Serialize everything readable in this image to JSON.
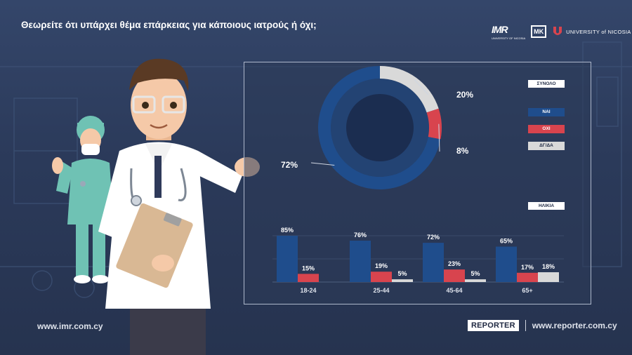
{
  "title": "Θεωρείτε ότι υπάρχει θέμα επάρκειας για κάποιους ιατρούς ή όχι;",
  "logos": {
    "imr": "IMR",
    "imr_sub": "UNIVERSITY OF NICOSIA",
    "box": "ΜΚ",
    "university": "UNIVERSITY of NICOSIA"
  },
  "footer": {
    "left_site": "www.imr.com.cy",
    "reporter": "REPORTER",
    "right_site": "www.reporter.com.cy"
  },
  "colors": {
    "yes": "#1f4d8c",
    "no": "#d8444e",
    "dk": "#d9d9d9",
    "ring_track": "#234373",
    "center": "#1b2d50"
  },
  "chart_data": [
    {
      "type": "pie",
      "label_tag": "ΣΥΝΟΛΟ",
      "categories": [
        "ΝΑΙ",
        "ΟΧΙ",
        "ΔΓ/ΔΑ"
      ],
      "values": [
        72,
        8,
        20
      ],
      "data_labels": [
        "72%",
        "8%",
        "20%"
      ]
    },
    {
      "type": "bar",
      "label_tag": "ΗΛΙΚΙΑ",
      "categories": [
        "18-24",
        "25-44",
        "45-64",
        "65+"
      ],
      "series": [
        {
          "name": "ΝΑΙ",
          "values": [
            85,
            76,
            72,
            65
          ]
        },
        {
          "name": "ΟΧΙ",
          "values": [
            15,
            19,
            23,
            17
          ]
        },
        {
          "name": "ΔΓ/ΔΑ",
          "values": [
            0,
            5,
            5,
            18
          ]
        }
      ],
      "data_labels": [
        [
          "85%",
          "76%",
          "72%",
          "65%"
        ],
        [
          "15%",
          "19%",
          "23%",
          "17%"
        ],
        [
          "",
          "5%",
          "5%",
          "18%"
        ]
      ]
    }
  ]
}
